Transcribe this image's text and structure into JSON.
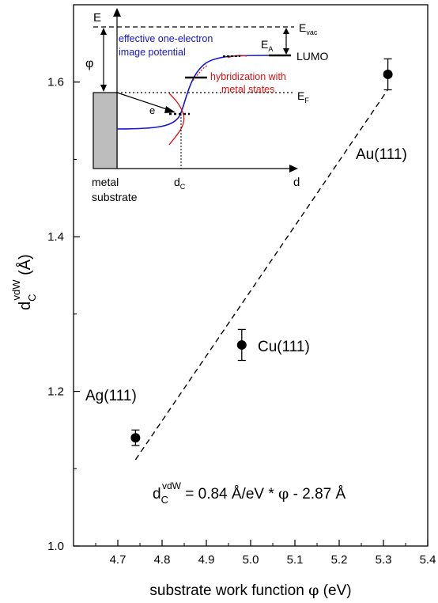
{
  "chart_data": {
    "type": "scatter",
    "xlabel_main": "substrate work function ",
    "xlabel_symbol": "φ",
    "xlabel_unit": " (eV)",
    "ylabel_main": "d",
    "ylabel_sub": "C",
    "ylabel_sup": "vdW",
    "ylabel_unit": " (Å)",
    "xlim": [
      4.6,
      5.4
    ],
    "ylim": [
      1.0,
      1.7
    ],
    "xticks": [
      4.7,
      4.8,
      4.9,
      5.0,
      5.1,
      5.2,
      5.3,
      5.4
    ],
    "xtick_labels": [
      "4.7",
      "4.8",
      "4.9",
      "5.0",
      "5.1",
      "5.2",
      "5.3",
      "5.4"
    ],
    "yticks": [
      1.0,
      1.2,
      1.4,
      1.6
    ],
    "ytick_labels": [
      "1.0",
      "1.2",
      "1.4",
      "1.6"
    ],
    "points": [
      {
        "label": "Ag(111)",
        "x": 4.74,
        "y": 1.14,
        "err": 0.01
      },
      {
        "label": "Cu(111)",
        "x": 4.98,
        "y": 1.26,
        "err": 0.02
      },
      {
        "label": "Au(111)",
        "x": 5.31,
        "y": 1.61,
        "err": 0.02
      }
    ],
    "fit": {
      "slope": 0.84,
      "intercept": -2.87,
      "x_range": [
        4.74,
        5.31
      ],
      "style": "dashed"
    },
    "fit_label_prefix": "d",
    "fit_label_sub": "C",
    "fit_label_sup": "vdW",
    "fit_label_rest": " = 0.84 Å/eV * ",
    "fit_label_symbol": "φ",
    "fit_label_tail": " - 2.87 Å"
  },
  "inset": {
    "axis_y_label": "E",
    "axis_x_label": "d",
    "phi_label": "φ",
    "e_vac_main": "E",
    "e_vac_sub": "vac",
    "e_a_main": "E",
    "e_a_sub": "A",
    "e_f_main": "E",
    "e_f_sub": "F",
    "lumo_label": "LUMO",
    "electron_label": "e",
    "dc_main": "d",
    "dc_sub": "C",
    "substrate_line1": "metal",
    "substrate_line2": "substrate",
    "potential_line1": "effective one-electron",
    "potential_line2": "image potential",
    "hybrid_line1": "hybridization with",
    "hybrid_line2": "metal states",
    "colors": {
      "potential": "#1414d2",
      "hybridization": "#e01010",
      "substrate": "#bdbdbd"
    }
  }
}
